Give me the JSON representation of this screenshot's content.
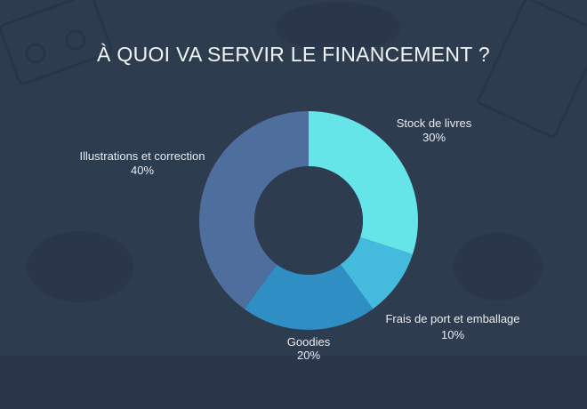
{
  "chart_data": {
    "type": "pie",
    "title": "À QUOI VA SERVIR LE FINANCEMENT ?",
    "donut": true,
    "slices": [
      {
        "name": "Stock de livres",
        "value": 30,
        "value_label": "30%",
        "color": "#66e5e8"
      },
      {
        "name": "Frais de port et emballage",
        "value": 10,
        "value_label": "10%",
        "color": "#44bbdc"
      },
      {
        "name": "Goodies",
        "value": 20,
        "value_label": "20%",
        "color": "#2f8ec4"
      },
      {
        "name": "Illustrations et correction",
        "value": 40,
        "value_label": "40%",
        "color": "#4e6e9e"
      }
    ]
  }
}
